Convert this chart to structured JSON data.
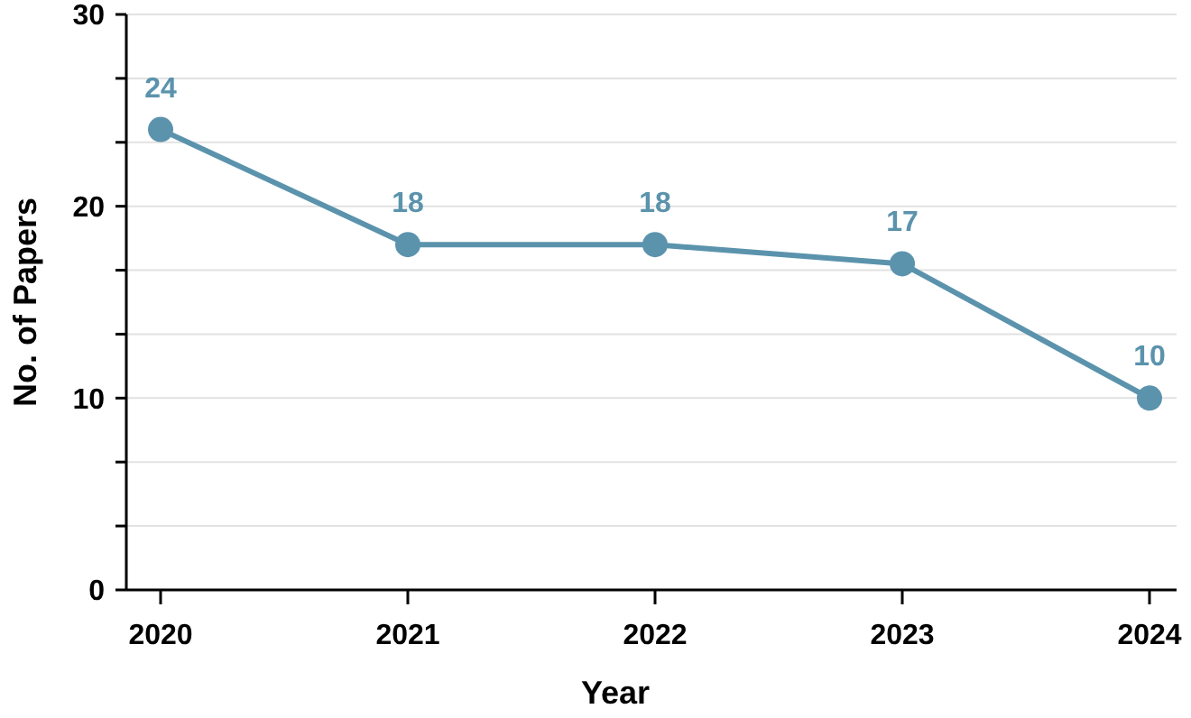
{
  "chart_data": {
    "type": "line",
    "xlabel": "Year",
    "ylabel": "No. of Papers",
    "categories": [
      "2020",
      "2021",
      "2022",
      "2023",
      "2024"
    ],
    "series": [
      {
        "color": "#5b93ad",
        "values": [
          24,
          18,
          18,
          17,
          10
        ]
      }
    ],
    "ylim": [
      0,
      30
    ],
    "yticks": [
      0,
      {
        "value": 3.333,
        "label": null
      },
      {
        "value": 6.667,
        "label": null
      },
      10,
      {
        "value": 13.333,
        "label": null
      },
      {
        "value": 16.667,
        "label": null
      },
      20,
      {
        "value": 23.333,
        "label": null
      },
      {
        "value": 26.667,
        "label": null
      },
      30
    ],
    "grid": "y",
    "marker": "circle",
    "line_style": "solid",
    "data_labels": true
  }
}
